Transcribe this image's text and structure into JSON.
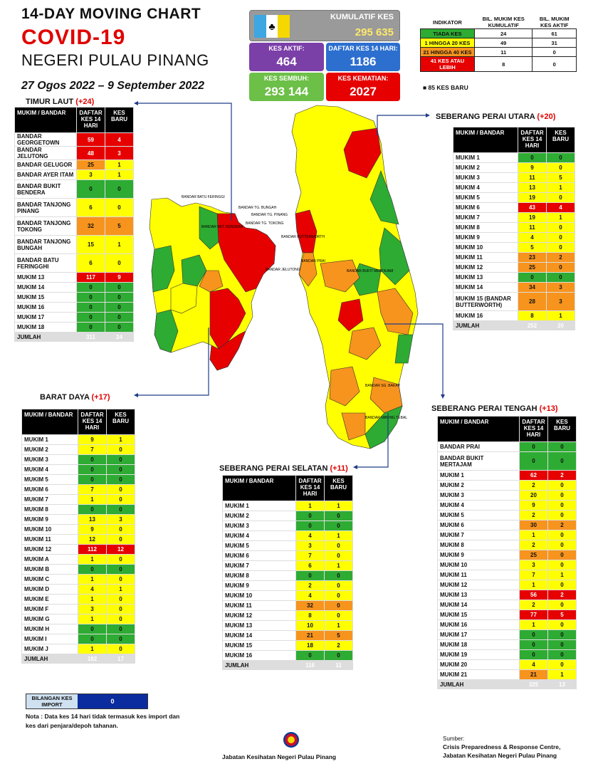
{
  "header": {
    "title_line1": "14-DAY MOVING CHART",
    "title_line2": "COVID-19",
    "title_line3": "NEGERI PULAU PINANG",
    "date_range": "27 Ogos 2022 – 9 September 2022"
  },
  "stats": {
    "cumulative_label": "KUMULATIF KES",
    "cumulative_value": "295 635",
    "active_label": "KES AKTIF:",
    "active_value": "464",
    "list14_label": "DAFTAR KES 14 HARI:",
    "list14_value": "1186",
    "recovered_label": "KES SEMBUH:",
    "recovered_value": "293 144",
    "deaths_label": "KES KEMATIAN:",
    "deaths_value": "2027",
    "new_cases_note": "85 KES BARU"
  },
  "indicator": {
    "headers": [
      "INDIKATOR",
      "BIL. MUKIM KES KUMULATIF",
      "BIL. MUKIM KES AKTIF"
    ],
    "rows": [
      {
        "label": "TIADA KES",
        "cum": "24",
        "act": "61",
        "color": "g"
      },
      {
        "label": "1 HINGGA 20 KES",
        "cum": "49",
        "act": "31",
        "color": "y"
      },
      {
        "label": "21 HINGGA 40 KES",
        "cum": "11",
        "act": "0",
        "color": "o"
      },
      {
        "label": "41 KES ATAU LEBIH",
        "cum": "8",
        "act": "0",
        "color": "r"
      }
    ]
  },
  "sections": {
    "timur_laut": {
      "title": "TIMUR LAUT",
      "plus": "(+24)",
      "headers": [
        "MUKIM / BANDAR",
        "DAFTAR KES 14 HARI",
        "KES BARU"
      ],
      "rows": [
        [
          "BANDAR GEORGETOWN",
          "59",
          "4",
          "r",
          "r"
        ],
        [
          "BANDAR JELUTONG",
          "48",
          "3",
          "r",
          "r"
        ],
        [
          "BANDAR GELUGOR",
          "25",
          "1",
          "o",
          "y"
        ],
        [
          "BANDAR AYER ITAM",
          "3",
          "1",
          "y",
          "y"
        ],
        [
          "BANDAR BUKIT BENDERA",
          "0",
          "0",
          "g",
          "g"
        ],
        [
          "BANDAR TANJONG PINANG",
          "6",
          "0",
          "y",
          "y"
        ],
        [
          "BANDAR TANJONG TOKONG",
          "32",
          "5",
          "o",
          "o"
        ],
        [
          "BANDAR TANJONG BUNGAH",
          "15",
          "1",
          "y",
          "y"
        ],
        [
          "BANDAR BATU FERINGGHI",
          "6",
          "0",
          "y",
          "y"
        ],
        [
          "MUKIM 13",
          "117",
          "9",
          "r",
          "r"
        ],
        [
          "MUKIM 14",
          "0",
          "0",
          "g",
          "g"
        ],
        [
          "MUKIM 15",
          "0",
          "0",
          "g",
          "g"
        ],
        [
          "MUKIM 16",
          "0",
          "0",
          "g",
          "g"
        ],
        [
          "MUKIM 17",
          "0",
          "0",
          "g",
          "g"
        ],
        [
          "MUKIM 18",
          "0",
          "0",
          "g",
          "g"
        ]
      ],
      "total": [
        "JUMLAH",
        "311",
        "24"
      ]
    },
    "barat_daya": {
      "title": "BARAT DAYA",
      "plus": "(+17)",
      "headers": [
        "MUKIM / BANDAR",
        "DAFTAR KES 14 HARI",
        "KES BARU"
      ],
      "rows": [
        [
          "MUKIM 1",
          "9",
          "1",
          "y",
          "y"
        ],
        [
          "MUKIM 2",
          "7",
          "0",
          "y",
          "y"
        ],
        [
          "MUKIM 3",
          "0",
          "0",
          "g",
          "g"
        ],
        [
          "MUKIM 4",
          "0",
          "0",
          "g",
          "g"
        ],
        [
          "MUKIM 5",
          "0",
          "0",
          "g",
          "g"
        ],
        [
          "MUKIM 6",
          "7",
          "0",
          "y",
          "y"
        ],
        [
          "MUKIM 7",
          "1",
          "0",
          "y",
          "y"
        ],
        [
          "MUKIM 8",
          "0",
          "0",
          "g",
          "g"
        ],
        [
          "MUKIM 9",
          "13",
          "3",
          "y",
          "y"
        ],
        [
          "MUKIM 10",
          "9",
          "0",
          "y",
          "y"
        ],
        [
          "MUKIM 11",
          "12",
          "0",
          "y",
          "y"
        ],
        [
          "MUKIM 12",
          "112",
          "12",
          "r",
          "r"
        ],
        [
          "MUKIM A",
          "1",
          "0",
          "y",
          "y"
        ],
        [
          "MUKIM B",
          "0",
          "0",
          "g",
          "g"
        ],
        [
          "MUKIM C",
          "1",
          "0",
          "y",
          "y"
        ],
        [
          "MUKIM D",
          "4",
          "1",
          "y",
          "y"
        ],
        [
          "MUKIM E",
          "1",
          "0",
          "y",
          "y"
        ],
        [
          "MUKIM F",
          "3",
          "0",
          "y",
          "y"
        ],
        [
          "MUKIM G",
          "1",
          "0",
          "y",
          "y"
        ],
        [
          "MUKIM H",
          "0",
          "0",
          "g",
          "g"
        ],
        [
          "MUKIM I",
          "0",
          "0",
          "g",
          "g"
        ],
        [
          "MUKIM J",
          "1",
          "0",
          "y",
          "y"
        ]
      ],
      "total": [
        "JUMLAH",
        "182",
        "17"
      ]
    },
    "spu": {
      "title": "SEBERANG PERAI UTARA",
      "plus": "(+20)",
      "headers": [
        "MUKIM / BANDAR",
        "DAFTAR KES 14 HARI",
        "KES BARU"
      ],
      "rows": [
        [
          "MUKIM 1",
          "0",
          "0",
          "g",
          "g"
        ],
        [
          "MUKIM 2",
          "9",
          "0",
          "y",
          "y"
        ],
        [
          "MUKIM 3",
          "11",
          "5",
          "y",
          "y"
        ],
        [
          "MUKIM 4",
          "13",
          "1",
          "y",
          "y"
        ],
        [
          "MUKIM 5",
          "19",
          "0",
          "y",
          "y"
        ],
        [
          "MUKIM 6",
          "43",
          "4",
          "r",
          "r"
        ],
        [
          "MUKIM 7",
          "19",
          "1",
          "y",
          "y"
        ],
        [
          "MUKIM 8",
          "11",
          "0",
          "y",
          "y"
        ],
        [
          "MUKIM 9",
          "4",
          "0",
          "y",
          "y"
        ],
        [
          "MUKIM 10",
          "5",
          "0",
          "y",
          "y"
        ],
        [
          "MUKIM 11",
          "23",
          "2",
          "o",
          "o"
        ],
        [
          "MUKIM 12",
          "25",
          "0",
          "o",
          "o"
        ],
        [
          "MUKIM 13",
          "0",
          "0",
          "g",
          "g"
        ],
        [
          "MUKIM 14",
          "34",
          "3",
          "o",
          "o"
        ],
        [
          "MUKIM 15 (BANDAR BUTTERWORTH)",
          "28",
          "3",
          "o",
          "o"
        ],
        [
          "MUKIM 16",
          "8",
          "1",
          "y",
          "y"
        ]
      ],
      "total": [
        "JUMLAH",
        "252",
        "20"
      ]
    },
    "sps": {
      "title": "SEBERANG PERAI SELATAN",
      "plus": "(+11)",
      "headers": [
        "MUKIM / BANDAR",
        "DAFTAR KES 14 HARI",
        "KES BARU"
      ],
      "rows": [
        [
          "MUKIM 1",
          "1",
          "1",
          "y",
          "y"
        ],
        [
          "MUKIM 2",
          "0",
          "0",
          "g",
          "g"
        ],
        [
          "MUKIM 3",
          "0",
          "0",
          "g",
          "g"
        ],
        [
          "MUKIM 4",
          "4",
          "1",
          "y",
          "y"
        ],
        [
          "MUKIM 5",
          "3",
          "0",
          "y",
          "y"
        ],
        [
          "MUKIM 6",
          "7",
          "0",
          "y",
          "y"
        ],
        [
          "MUKIM 7",
          "6",
          "1",
          "y",
          "y"
        ],
        [
          "MUKIM 8",
          "0",
          "0",
          "g",
          "g"
        ],
        [
          "MUKIM 9",
          "2",
          "0",
          "y",
          "y"
        ],
        [
          "MUKIM 10",
          "4",
          "0",
          "y",
          "y"
        ],
        [
          "MUKIM 11",
          "32",
          "0",
          "o",
          "o"
        ],
        [
          "MUKIM 12",
          "8",
          "0",
          "y",
          "y"
        ],
        [
          "MUKIM 13",
          "10",
          "1",
          "y",
          "y"
        ],
        [
          "MUKIM 14",
          "21",
          "5",
          "o",
          "o"
        ],
        [
          "MUKIM 15",
          "18",
          "2",
          "y",
          "y"
        ],
        [
          "MUKIM 16",
          "0",
          "0",
          "g",
          "g"
        ]
      ],
      "total": [
        "JUMLAH",
        "116",
        "11"
      ]
    },
    "spt": {
      "title": "SEBERANG PERAI TENGAH",
      "plus": "(+13)",
      "headers": [
        "MUKIM / BANDAR",
        "DAFTAR KES 14 HARI",
        "KES BARU"
      ],
      "rows": [
        [
          "BANDAR PRAI",
          "0",
          "0",
          "g",
          "g"
        ],
        [
          "BANDAR BUKIT MERTAJAM",
          "0",
          "0",
          "g",
          "g"
        ],
        [
          "MUKIM 1",
          "62",
          "2",
          "r",
          "r"
        ],
        [
          "MUKIM 2",
          "2",
          "0",
          "y",
          "y"
        ],
        [
          "MUKIM 3",
          "20",
          "0",
          "y",
          "y"
        ],
        [
          "MUKIM 4",
          "9",
          "0",
          "y",
          "y"
        ],
        [
          "MUKIM 5",
          "2",
          "0",
          "y",
          "y"
        ],
        [
          "MUKIM 6",
          "30",
          "2",
          "o",
          "o"
        ],
        [
          "MUKIM 7",
          "1",
          "0",
          "y",
          "y"
        ],
        [
          "MUKIM 8",
          "2",
          "0",
          "y",
          "y"
        ],
        [
          "MUKIM 9",
          "25",
          "0",
          "o",
          "o"
        ],
        [
          "MUKIM 10",
          "3",
          "0",
          "y",
          "y"
        ],
        [
          "MUKIM 11",
          "7",
          "1",
          "y",
          "y"
        ],
        [
          "MUKIM 12",
          "1",
          "0",
          "y",
          "y"
        ],
        [
          "MUKIM 13",
          "56",
          "2",
          "r",
          "r"
        ],
        [
          "MUKIM 14",
          "2",
          "0",
          "y",
          "y"
        ],
        [
          "MUKIM 15",
          "77",
          "5",
          "r",
          "r"
        ],
        [
          "MUKIM 16",
          "1",
          "0",
          "y",
          "y"
        ],
        [
          "MUKIM 17",
          "0",
          "0",
          "g",
          "g"
        ],
        [
          "MUKIM 18",
          "0",
          "0",
          "g",
          "g"
        ],
        [
          "MUKIM 19",
          "0",
          "0",
          "g",
          "g"
        ],
        [
          "MUKIM 20",
          "4",
          "0",
          "y",
          "y"
        ],
        [
          "MUKIM 21",
          "21",
          "1",
          "o",
          "y"
        ]
      ],
      "total": [
        "JUMLAH",
        "325",
        "13"
      ]
    }
  },
  "import": {
    "label": "BILANGAN KES IMPORT",
    "value": "0",
    "note": "Nota : Data kes 14 hari tidak termasuk kes import dan kes dari penjara/depoh tahanan."
  },
  "footer": {
    "agency": "Jabatan Kesihatan Negeri Pulau Pinang",
    "source_label": "Sumber:",
    "source_line1": "Crisis Preparedness & Response Centre,",
    "source_line2": "Jabatan Kesihatan Negeri Pulau Pinang"
  },
  "map_labels": {
    "batu_feringgi": "BANDAR BATU FERINGGI",
    "tg_bungah": "BANDAR TG. BUNGAH",
    "tg_pinang": "BANDAR TG. PINANG",
    "tg_tokong": "BANDAR TG. TOKONG",
    "bukit_bendera": "BANDAR BKT. BENDERA",
    "butterworth": "BANDAR BUTTERWORTH",
    "prai": "BANDAR PRAI",
    "bukit_mertajam": "BANDAR BUKIT MERTAJAM",
    "jelutong": "BANDAR JELUTONG",
    "sg_bakap": "BANDAR SG. BAKAP",
    "nibong_tebal": "BANDAR NIBONG TEBAL"
  },
  "colors": {
    "green": "#2eab33",
    "yellow": "#ffff00",
    "orange": "#f7941d",
    "red": "#e60000",
    "purple": "#7b3fa8",
    "blue": "#2c6fcf",
    "leaf": "#6cbf47"
  }
}
